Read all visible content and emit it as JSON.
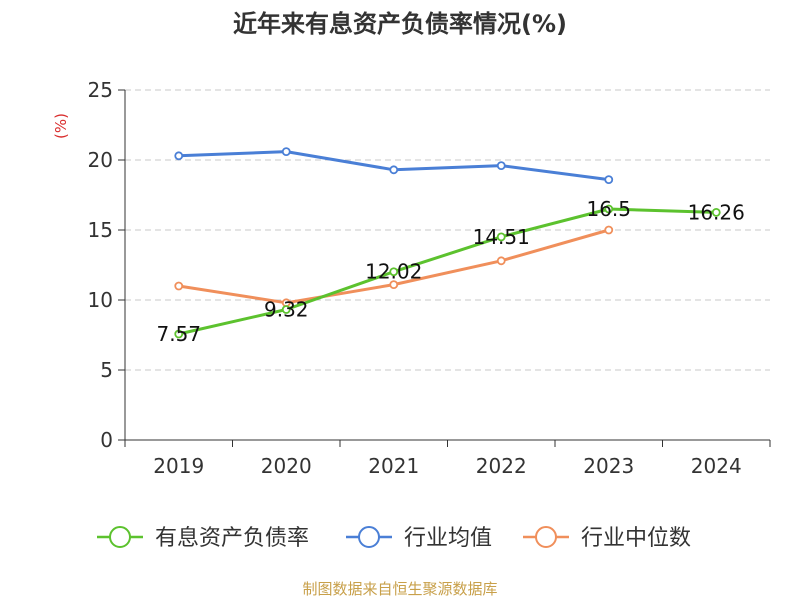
{
  "chart_data": {
    "type": "line",
    "title": "近年来有息资产负债率情况(%)",
    "ylabel": "(%)",
    "categories": [
      "2019",
      "2020",
      "2021",
      "2022",
      "2023",
      "2024"
    ],
    "ylim": [
      0,
      25
    ],
    "yticks": [
      0,
      5,
      10,
      15,
      20,
      25
    ],
    "grid": true,
    "legend_position": "bottom",
    "series": [
      {
        "name": "有息资产负债率",
        "color": "#5cc22e",
        "values": [
          7.57,
          9.32,
          12.02,
          14.51,
          16.5,
          16.26
        ],
        "labels": [
          "7.57",
          "9.32",
          "12.02",
          "14.51",
          "16.5",
          "16.26"
        ]
      },
      {
        "name": "行业均值",
        "color": "#4a7fd6",
        "values": [
          20.3,
          20.6,
          19.3,
          19.6,
          18.6,
          null
        ]
      },
      {
        "name": "行业中位数",
        "color": "#f08f5b",
        "values": [
          11.0,
          9.8,
          11.1,
          12.8,
          15.0,
          null
        ]
      }
    ]
  },
  "source": "制图数据来自恒生聚源数据库"
}
